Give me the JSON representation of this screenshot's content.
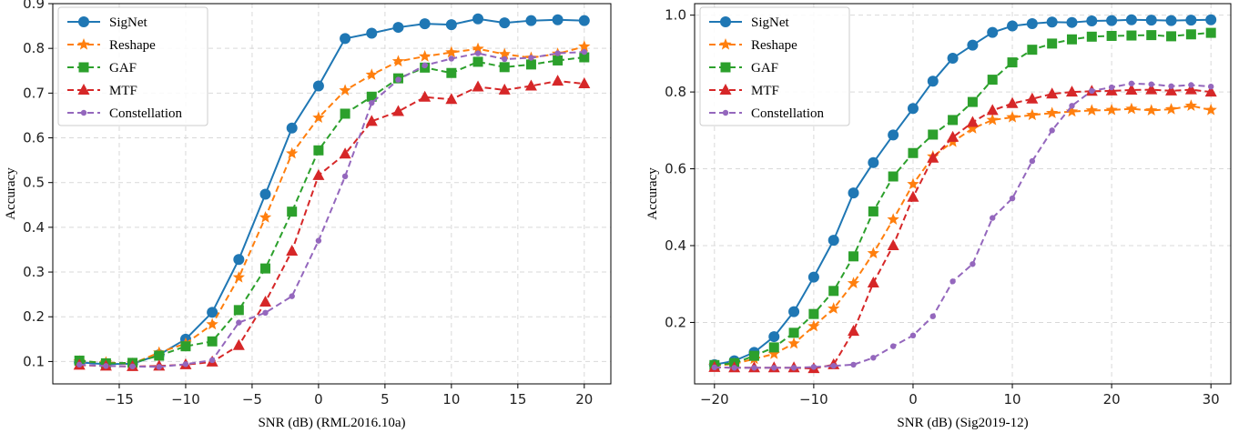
{
  "chart_data": [
    {
      "type": "line",
      "xlabel": "SNR (dB) (RML2016.10a)",
      "ylabel": "Accuracy",
      "xlim": [
        -20,
        22
      ],
      "ylim": [
        0.05,
        0.9
      ],
      "xticks": [
        -15,
        -10,
        -5,
        0,
        5,
        10,
        15,
        20
      ],
      "yticks": [
        0.1,
        0.2,
        0.3,
        0.4,
        0.5,
        0.6,
        0.7,
        0.8,
        0.9
      ],
      "ytick_labels": [
        "0.1",
        "0.2",
        "0.3",
        "0.4",
        "0.5",
        "0.6",
        "0.7",
        "0.8",
        "0.9"
      ],
      "grid": true,
      "legend_position": "top-left",
      "x": [
        -18,
        -16,
        -14,
        -12,
        -10,
        -8,
        -6,
        -4,
        -2,
        0,
        2,
        4,
        6,
        8,
        10,
        12,
        14,
        16,
        18,
        20
      ],
      "series": [
        {
          "name": "SigNet",
          "color": "#1f77b4",
          "marker": "circle",
          "dash": "solid",
          "values": [
            0.098,
            0.094,
            0.095,
            0.115,
            0.15,
            0.21,
            0.328,
            0.474,
            0.622,
            0.716,
            0.822,
            0.834,
            0.847,
            0.855,
            0.853,
            0.866,
            0.857,
            0.862,
            0.864,
            0.862
          ]
        },
        {
          "name": "Reshape",
          "color": "#ff7f0e",
          "marker": "star",
          "dash": "dashed",
          "values": [
            0.1,
            0.098,
            0.095,
            0.12,
            0.14,
            0.183,
            0.288,
            0.422,
            0.565,
            0.645,
            0.706,
            0.741,
            0.771,
            0.782,
            0.791,
            0.799,
            0.787,
            0.779,
            0.788,
            0.804
          ]
        },
        {
          "name": "GAF",
          "color": "#2ca02c",
          "marker": "square",
          "dash": "dashed",
          "values": [
            0.102,
            0.096,
            0.097,
            0.113,
            0.134,
            0.145,
            0.215,
            0.308,
            0.435,
            0.572,
            0.654,
            0.692,
            0.733,
            0.757,
            0.745,
            0.77,
            0.758,
            0.764,
            0.773,
            0.78
          ]
        },
        {
          "name": "MTF",
          "color": "#d62728",
          "marker": "triangle",
          "dash": "dashed",
          "values": [
            0.092,
            0.09,
            0.089,
            0.09,
            0.093,
            0.099,
            0.136,
            0.233,
            0.347,
            0.516,
            0.564,
            0.637,
            0.659,
            0.691,
            0.686,
            0.714,
            0.707,
            0.716,
            0.727,
            0.721
          ]
        },
        {
          "name": "Constellation",
          "color": "#9467bd",
          "marker": "dot",
          "dash": "dashed",
          "values": [
            0.093,
            0.09,
            0.089,
            0.088,
            0.094,
            0.103,
            0.187,
            0.209,
            0.246,
            0.37,
            0.514,
            0.678,
            0.73,
            0.762,
            0.777,
            0.789,
            0.776,
            0.779,
            0.789,
            0.792
          ]
        }
      ]
    },
    {
      "type": "line",
      "xlabel": "SNR (dB) (Sig2019-12)",
      "ylabel": "Accuracy",
      "xlim": [
        -22,
        32
      ],
      "ylim": [
        0.04,
        1.03
      ],
      "xticks": [
        -20,
        -10,
        0,
        10,
        20,
        30
      ],
      "yticks": [
        0.2,
        0.4,
        0.6,
        0.8,
        1.0
      ],
      "ytick_labels": [
        "0.2",
        "0.4",
        "0.6",
        "0.8",
        "1.0"
      ],
      "grid": true,
      "legend_position": "top-left",
      "x": [
        -20,
        -18,
        -16,
        -14,
        -12,
        -10,
        -8,
        -6,
        -4,
        -2,
        0,
        2,
        4,
        6,
        8,
        10,
        12,
        14,
        16,
        18,
        20,
        22,
        24,
        26,
        28,
        30
      ],
      "series": [
        {
          "name": "SigNet",
          "color": "#1f77b4",
          "marker": "circle",
          "dash": "solid",
          "values": [
            0.09,
            0.1,
            0.122,
            0.163,
            0.228,
            0.318,
            0.414,
            0.537,
            0.616,
            0.688,
            0.757,
            0.828,
            0.888,
            0.922,
            0.955,
            0.972,
            0.978,
            0.982,
            0.981,
            0.985,
            0.986,
            0.988,
            0.987,
            0.986,
            0.987,
            0.988
          ]
        },
        {
          "name": "Reshape",
          "color": "#ff7f0e",
          "marker": "star",
          "dash": "dashed",
          "values": [
            0.087,
            0.092,
            0.105,
            0.118,
            0.145,
            0.19,
            0.236,
            0.302,
            0.38,
            0.468,
            0.56,
            0.632,
            0.67,
            0.705,
            0.727,
            0.734,
            0.74,
            0.745,
            0.749,
            0.752,
            0.753,
            0.756,
            0.752,
            0.755,
            0.764,
            0.753
          ]
        },
        {
          "name": "GAF",
          "color": "#2ca02c",
          "marker": "square",
          "dash": "dashed",
          "values": [
            0.089,
            0.094,
            0.113,
            0.135,
            0.173,
            0.222,
            0.282,
            0.372,
            0.489,
            0.58,
            0.641,
            0.689,
            0.727,
            0.774,
            0.832,
            0.877,
            0.91,
            0.926,
            0.937,
            0.944,
            0.946,
            0.947,
            0.948,
            0.945,
            0.95,
            0.954
          ]
        },
        {
          "name": "MTF",
          "color": "#d62728",
          "marker": "triangle",
          "dash": "dashed",
          "values": [
            0.083,
            0.082,
            0.082,
            0.082,
            0.082,
            0.08,
            0.09,
            0.177,
            0.303,
            0.4,
            0.526,
            0.628,
            0.682,
            0.721,
            0.752,
            0.77,
            0.782,
            0.795,
            0.8,
            0.802,
            0.803,
            0.805,
            0.806,
            0.803,
            0.806,
            0.8
          ]
        },
        {
          "name": "Constellation",
          "color": "#9467bd",
          "marker": "dot",
          "dash": "dashed",
          "values": [
            0.083,
            0.082,
            0.082,
            0.082,
            0.082,
            0.084,
            0.087,
            0.09,
            0.108,
            0.138,
            0.166,
            0.216,
            0.307,
            0.352,
            0.472,
            0.523,
            0.62,
            0.7,
            0.764,
            0.803,
            0.812,
            0.822,
            0.82,
            0.815,
            0.818,
            0.814
          ]
        }
      ]
    }
  ]
}
